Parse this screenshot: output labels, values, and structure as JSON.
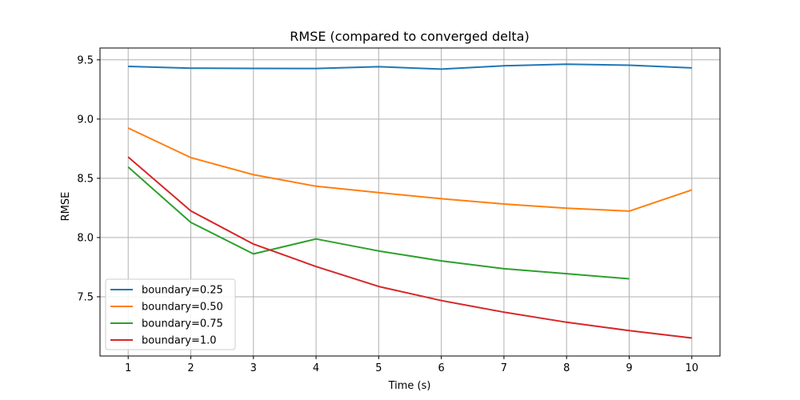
{
  "chart_data": {
    "type": "line",
    "title": "RMSE (compared to converged delta)",
    "xlabel": "Time (s)",
    "ylabel": "RMSE",
    "xlim": [
      0.55,
      10.45
    ],
    "ylim": [
      7.0,
      9.6
    ],
    "xticks": [
      1,
      2,
      3,
      4,
      5,
      6,
      7,
      8,
      9,
      10
    ],
    "yticks": [
      7.5,
      8.0,
      8.5,
      9.0,
      9.5
    ],
    "ytick_labels": [
      "7.5",
      "8.0",
      "8.5",
      "9.0",
      "9.5"
    ],
    "grid": true,
    "legend_position": "lower-left",
    "series": [
      {
        "name": "boundary=0.25",
        "color": "#1f77b4",
        "x": [
          1,
          2,
          3,
          4,
          5,
          6,
          7,
          8,
          9,
          10
        ],
        "values": [
          9.445,
          9.43,
          9.428,
          9.427,
          9.442,
          9.422,
          9.45,
          9.463,
          9.455,
          9.432
        ]
      },
      {
        "name": "boundary=0.50",
        "color": "#ff7f0e",
        "x": [
          1,
          2,
          3,
          4,
          5,
          6,
          7,
          8,
          9,
          10
        ],
        "values": [
          8.925,
          8.675,
          8.53,
          8.433,
          8.38,
          8.328,
          8.283,
          8.248,
          8.223,
          8.402
        ]
      },
      {
        "name": "boundary=0.75",
        "color": "#2ca02c",
        "x": [
          1,
          2,
          3,
          4,
          5,
          6,
          7,
          8,
          9
        ],
        "values": [
          8.595,
          8.128,
          7.862,
          7.988,
          7.887,
          7.803,
          7.737,
          7.695,
          7.652
        ]
      },
      {
        "name": "boundary=1.0",
        "color": "#d62728",
        "x": [
          1,
          2,
          3,
          4,
          5,
          6,
          7,
          8,
          9,
          10
        ],
        "values": [
          8.68,
          8.225,
          7.945,
          7.755,
          7.587,
          7.468,
          7.37,
          7.285,
          7.215,
          7.152
        ]
      }
    ]
  }
}
